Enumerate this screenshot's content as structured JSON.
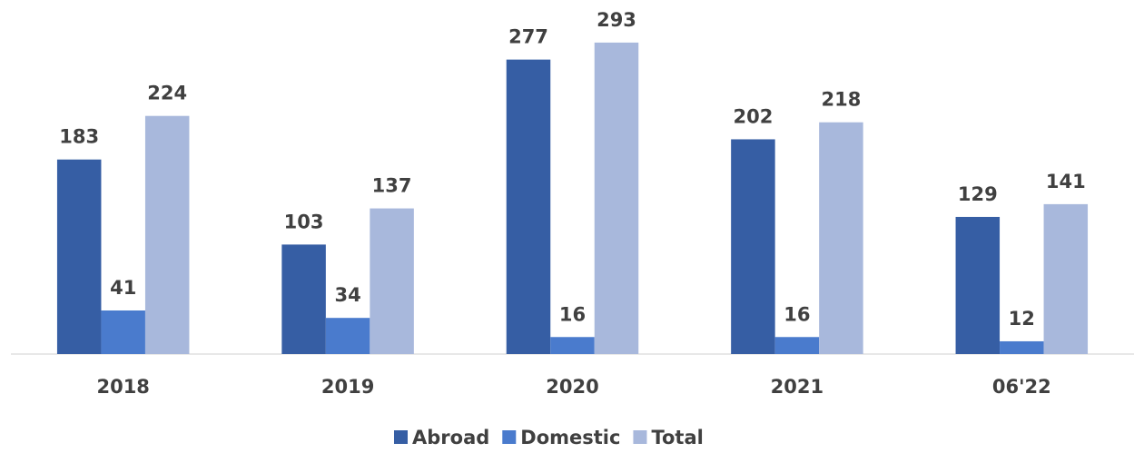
{
  "chart_data": {
    "type": "bar",
    "categories": [
      "2018",
      "2019",
      "2020",
      "2021",
      "06'22"
    ],
    "series": [
      {
        "name": "Abroad",
        "color": "#365ea4",
        "values": [
          183,
          103,
          277,
          202,
          129
        ]
      },
      {
        "name": "Domestic",
        "color": "#4a7bcd",
        "values": [
          41,
          34,
          16,
          16,
          12
        ]
      },
      {
        "name": "Total",
        "color": "#a8b8dc",
        "values": [
          224,
          137,
          293,
          218,
          141
        ]
      }
    ]
  }
}
